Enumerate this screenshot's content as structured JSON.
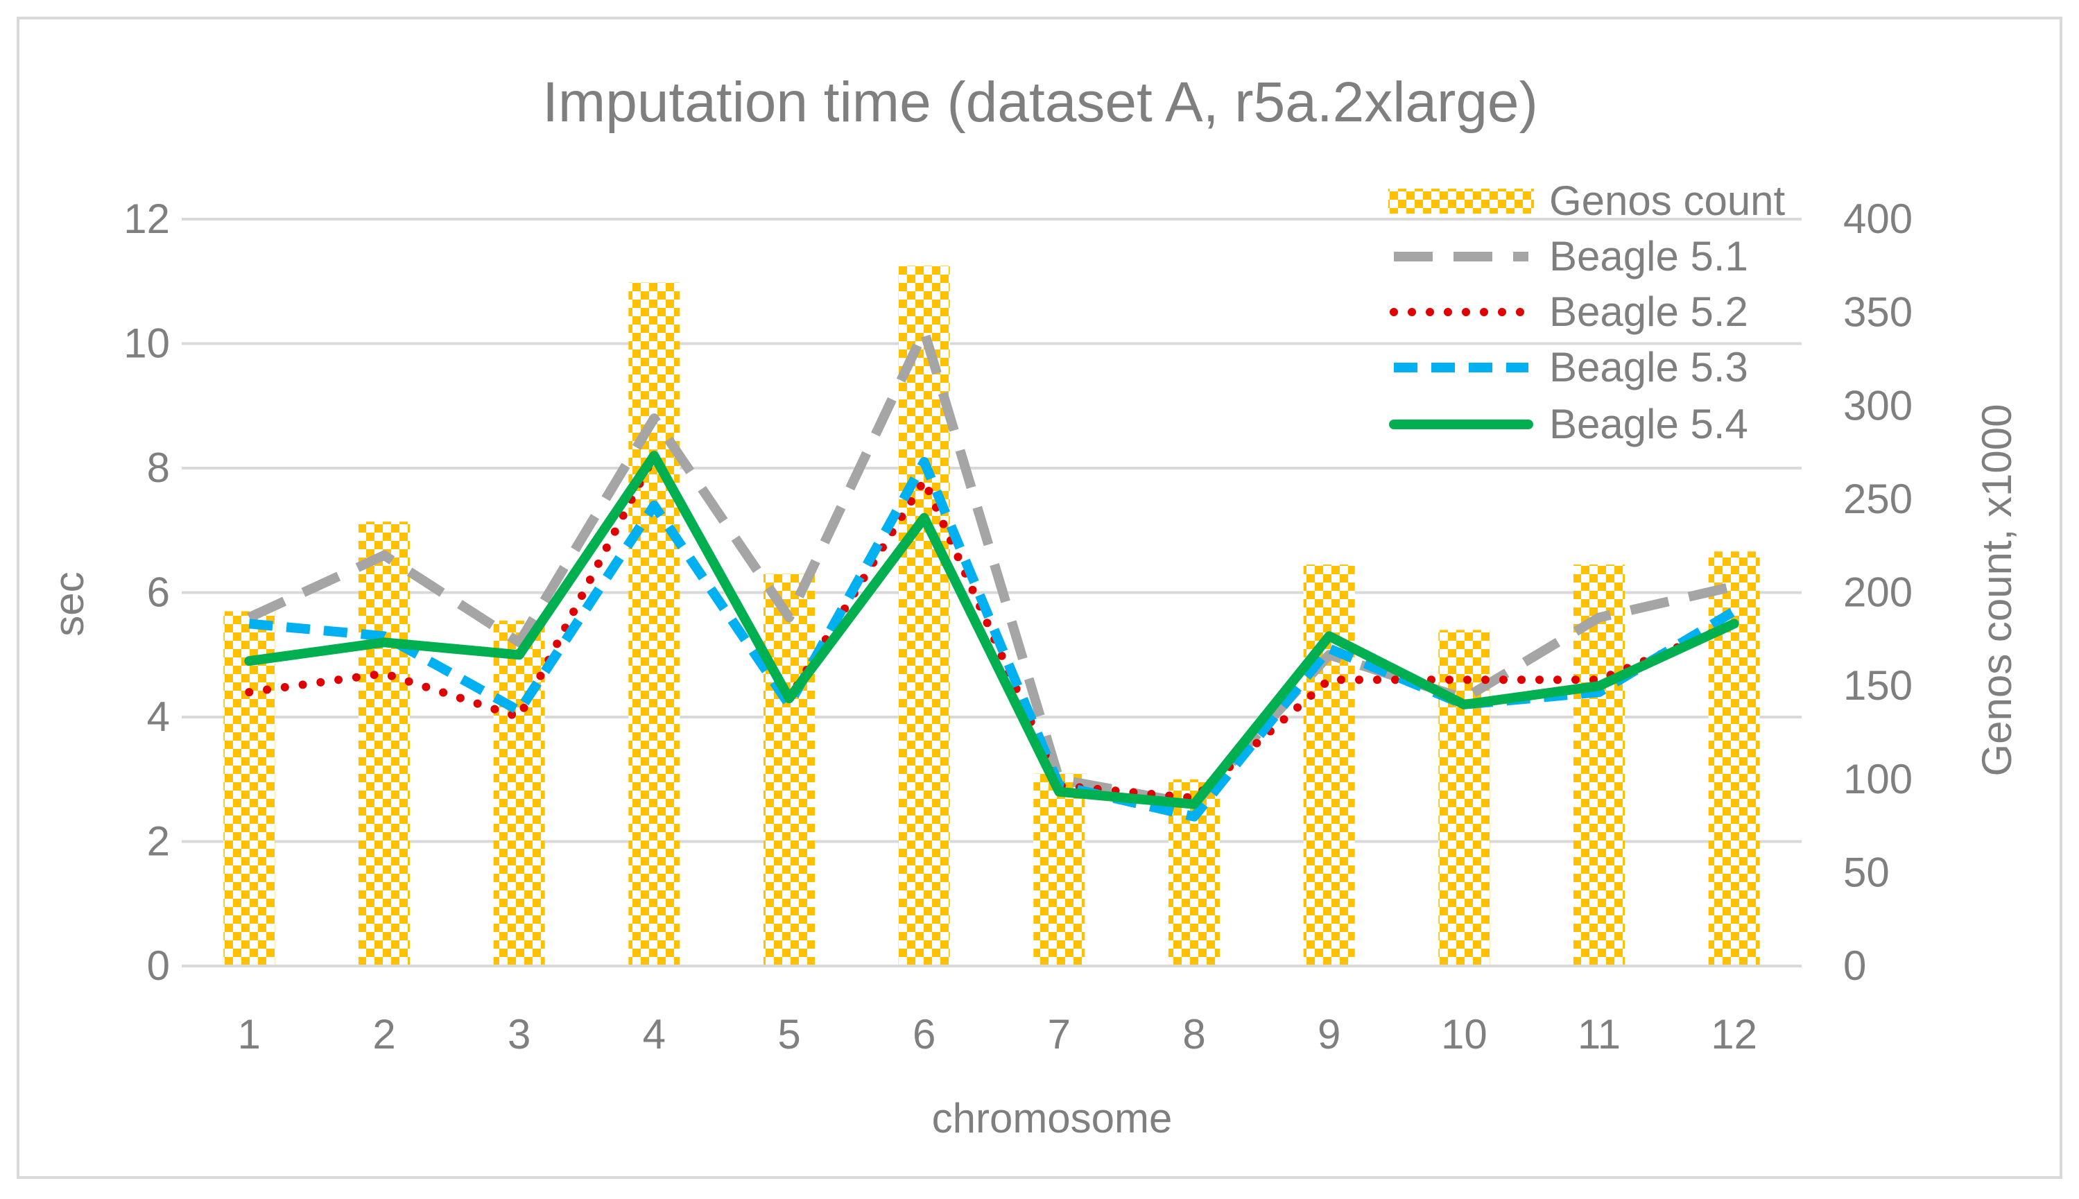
{
  "chart_data": {
    "type": "bar+line",
    "title": "Imputation time (dataset A, r5a.2xlarge)",
    "xlabel": "chromosome",
    "ylabel": "sec",
    "y2label": "Genos count, x1000",
    "categories": [
      "1",
      "2",
      "3",
      "4",
      "5",
      "6",
      "7",
      "8",
      "9",
      "10",
      "11",
      "12"
    ],
    "ylim": [
      0,
      12
    ],
    "yticks": [
      "0",
      "2",
      "4",
      "6",
      "8",
      "10",
      "12"
    ],
    "y2lim": [
      0,
      400
    ],
    "y2ticks": [
      "0",
      "50",
      "100",
      "150",
      "200",
      "250",
      "300",
      "350",
      "400"
    ],
    "grid": true,
    "legend_position": "top-right",
    "bar_series": {
      "name": "Genos count",
      "axis": "secondary",
      "values": [
        190,
        238,
        185,
        366,
        210,
        375,
        103,
        100,
        215,
        180,
        215,
        222
      ],
      "color": "#FFC000"
    },
    "series": [
      {
        "name": "Beagle 5.1",
        "values": [
          5.6,
          6.6,
          5.2,
          8.8,
          5.6,
          10.2,
          3.0,
          2.6,
          5.0,
          4.3,
          5.6,
          6.1
        ],
        "color": "#A5A5A5",
        "style": "long-dash"
      },
      {
        "name": "Beagle 5.2",
        "values": [
          4.4,
          4.7,
          4.0,
          8.2,
          4.3,
          7.8,
          2.9,
          2.7,
          4.6,
          4.6,
          4.6,
          5.5
        ],
        "color": "#E00000",
        "style": "dotted"
      },
      {
        "name": "Beagle 5.3",
        "values": [
          5.5,
          5.3,
          4.1,
          7.4,
          4.2,
          8.1,
          2.9,
          2.4,
          5.1,
          4.2,
          4.4,
          5.7
        ],
        "color": "#00B0F0",
        "style": "dashed"
      },
      {
        "name": "Beagle 5.4",
        "values": [
          4.9,
          5.2,
          5.0,
          8.2,
          4.3,
          7.2,
          2.8,
          2.6,
          5.3,
          4.2,
          4.5,
          5.5
        ],
        "color": "#00B050",
        "style": "solid"
      }
    ]
  }
}
